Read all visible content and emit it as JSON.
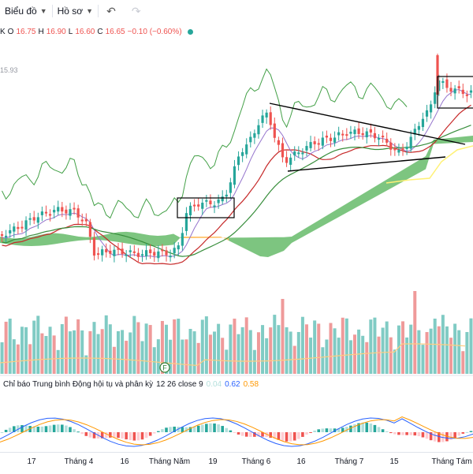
{
  "toolbar": {
    "chart_menu": "Biểu đồ",
    "profile_menu": "Hồ sơ",
    "undo_icon": "undo-icon",
    "redo_icon": "redo-icon"
  },
  "legend": {
    "ticker_tail": "K",
    "o_key": "O",
    "o_val": "16.75",
    "h_key": "H",
    "h_val": "16.90",
    "l_key": "L",
    "l_val": "16.60",
    "c_key": "C",
    "c_val": "16.65",
    "change": "−0.10 (−0.60%)"
  },
  "price_label": "15.93",
  "macd": {
    "title": "Chỉ báo Trung bình Động hội tụ và phân kỳ",
    "params": "12 26 close 9",
    "hist": "0.04",
    "macd": "0.62",
    "signal": "0.58",
    "hist_color": "#b2dfdb",
    "macd_color": "#2962ff",
    "signal_color": "#ff9800"
  },
  "event_marker": "F",
  "colors": {
    "up": "#26a69a",
    "down": "#ef5350",
    "cloud_up": "#4caf50",
    "cloud_down": "#ff9800",
    "lagging": "#43a047",
    "kijun": "#b71c1c",
    "tenkan": "#7e57c2"
  },
  "chart_data": {
    "type": "candlestick",
    "x_ticks": [
      "17",
      "Tháng 4",
      "16",
      "Tháng Năm",
      "19",
      "Tháng 6",
      "16",
      "Tháng 7",
      "15",
      "Tháng Tám"
    ]
  }
}
